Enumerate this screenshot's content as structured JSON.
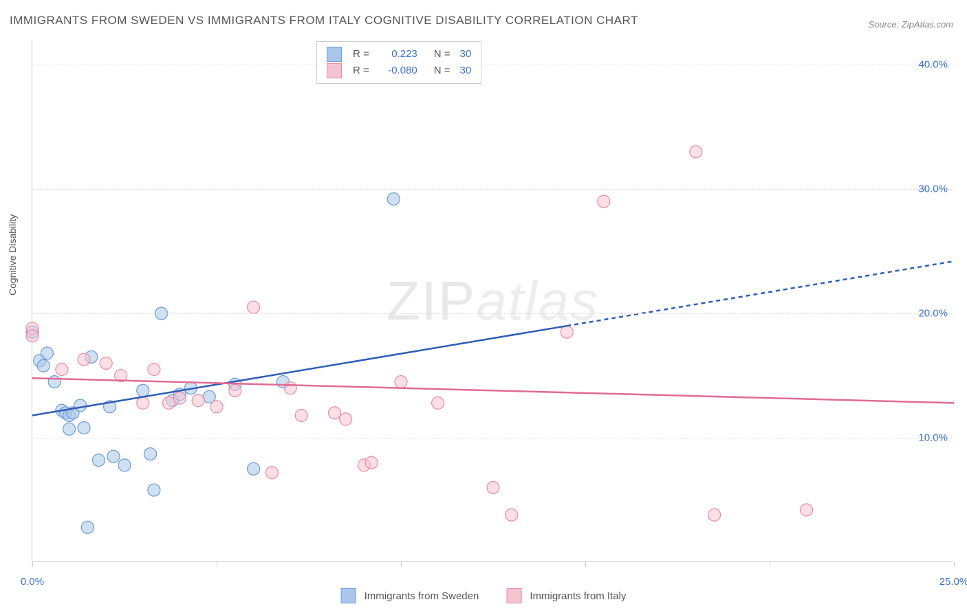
{
  "title": "IMMIGRANTS FROM SWEDEN VS IMMIGRANTS FROM ITALY COGNITIVE DISABILITY CORRELATION CHART",
  "source": "Source: ZipAtlas.com",
  "watermark": {
    "part1": "ZIP",
    "part2": "atlas"
  },
  "chart": {
    "type": "scatter",
    "y_axis_title": "Cognitive Disability",
    "xlim": [
      0,
      25
    ],
    "ylim": [
      0,
      42
    ],
    "x_ticks": [
      0,
      5,
      10,
      15,
      20,
      25
    ],
    "x_tick_labels": [
      "0.0%",
      "",
      "",
      "",
      "",
      "25.0%"
    ],
    "y_ticks": [
      10,
      20,
      30,
      40
    ],
    "y_tick_labels": [
      "10.0%",
      "20.0%",
      "30.0%",
      "40.0%"
    ],
    "grid_color": "#dddddd",
    "background_color": "#ffffff",
    "point_radius": 9,
    "series": [
      {
        "name": "Immigrants from Sweden",
        "color_fill": "#a9c6ea",
        "color_stroke": "#6a9bd8",
        "fill_opacity": 0.55,
        "r_value": "0.223",
        "n_value": "30",
        "trend": {
          "x1": 0,
          "y1": 11.8,
          "x2": 14.5,
          "y2": 19.0,
          "x2_dash": 25,
          "y2_dash": 24.2,
          "color": "#2e5db5",
          "width": 2.5
        },
        "points": [
          [
            0.0,
            18.5
          ],
          [
            0.2,
            16.2
          ],
          [
            0.3,
            15.8
          ],
          [
            0.4,
            16.8
          ],
          [
            0.6,
            14.5
          ],
          [
            0.8,
            12.2
          ],
          [
            0.9,
            12.0
          ],
          [
            1.0,
            11.8
          ],
          [
            1.1,
            12.0
          ],
          [
            1.0,
            10.7
          ],
          [
            1.3,
            12.6
          ],
          [
            1.4,
            10.8
          ],
          [
            1.5,
            2.8
          ],
          [
            1.6,
            16.5
          ],
          [
            1.8,
            8.2
          ],
          [
            2.1,
            12.5
          ],
          [
            2.2,
            8.5
          ],
          [
            2.5,
            7.8
          ],
          [
            3.0,
            13.8
          ],
          [
            3.2,
            8.7
          ],
          [
            3.3,
            5.8
          ],
          [
            3.5,
            20.0
          ],
          [
            3.8,
            13.0
          ],
          [
            4.0,
            13.5
          ],
          [
            4.3,
            14.0
          ],
          [
            4.8,
            13.3
          ],
          [
            5.5,
            14.3
          ],
          [
            6.0,
            7.5
          ],
          [
            6.8,
            14.5
          ],
          [
            9.8,
            29.2
          ]
        ]
      },
      {
        "name": "Immigrants from Italy",
        "color_fill": "#f5c4d0",
        "color_stroke": "#e88ba5",
        "fill_opacity": 0.55,
        "r_value": "-0.080",
        "n_value": "30",
        "trend": {
          "x1": 0,
          "y1": 14.8,
          "x2": 25,
          "y2": 12.8,
          "color": "#e16a94",
          "width": 2.5
        },
        "points": [
          [
            0.0,
            18.8
          ],
          [
            0.0,
            18.2
          ],
          [
            0.8,
            15.5
          ],
          [
            1.4,
            16.3
          ],
          [
            2.0,
            16.0
          ],
          [
            2.4,
            15.0
          ],
          [
            3.0,
            12.8
          ],
          [
            3.3,
            15.5
          ],
          [
            3.7,
            12.8
          ],
          [
            4.0,
            13.2
          ],
          [
            4.5,
            13.0
          ],
          [
            5.0,
            12.5
          ],
          [
            5.5,
            13.8
          ],
          [
            6.0,
            20.5
          ],
          [
            6.5,
            7.2
          ],
          [
            7.0,
            14.0
          ],
          [
            7.3,
            11.8
          ],
          [
            8.2,
            12.0
          ],
          [
            8.5,
            11.5
          ],
          [
            9.0,
            7.8
          ],
          [
            9.2,
            8.0
          ],
          [
            10.0,
            14.5
          ],
          [
            11.0,
            12.8
          ],
          [
            12.5,
            6.0
          ],
          [
            13.0,
            3.8
          ],
          [
            14.5,
            18.5
          ],
          [
            15.5,
            29.0
          ],
          [
            18.0,
            33.0
          ],
          [
            18.5,
            3.8
          ],
          [
            21.0,
            4.2
          ]
        ]
      }
    ]
  },
  "legend_top": {
    "r_label": "R =",
    "n_label": "N ="
  },
  "colors": {
    "axis_text": "#3a6fd8",
    "title_text": "#555555"
  }
}
